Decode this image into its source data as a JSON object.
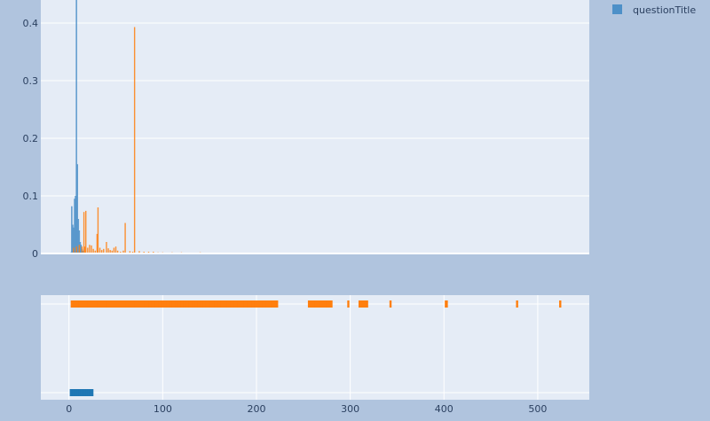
{
  "colors": {
    "page_background": "#b0c4de",
    "plot_background": "#e5ecf6",
    "grid": "#ffffff",
    "tick_text": "#2a3f5f"
  },
  "legend": {
    "placement": "top-right",
    "entries": [
      {
        "name": "questionTitle",
        "color": "#4d90c8"
      }
    ]
  },
  "chart_data": [
    {
      "type": "bar",
      "title": "",
      "xlabel": "",
      "ylabel": "",
      "xlim": [
        -30,
        555
      ],
      "ylim": [
        0,
        0.44
      ],
      "yticks": [
        0,
        0.1,
        0.2,
        0.3,
        0.4
      ],
      "grid": true,
      "series": [
        {
          "name": "questionTitle",
          "color": "#4d90c8",
          "x": [
            2,
            3,
            4,
            5,
            6,
            7,
            8,
            9,
            10,
            11,
            12,
            13,
            14,
            15
          ],
          "values": [
            0.002,
            0.082,
            0.05,
            0.045,
            0.095,
            0.1,
            0.47,
            0.155,
            0.06,
            0.04,
            0.02,
            0.015,
            0.008,
            0.005
          ]
        },
        {
          "name": "",
          "color": "#ff7f0e",
          "x": [
            5,
            8,
            11,
            14,
            16,
            17,
            18,
            20,
            22,
            24,
            26,
            28,
            30,
            31,
            33,
            35,
            37,
            40,
            42,
            44,
            46,
            48,
            50,
            52,
            55,
            58,
            60,
            65,
            68,
            70,
            75,
            80,
            85,
            90,
            95,
            100,
            110,
            120,
            130,
            140,
            150,
            160,
            170,
            180,
            190,
            200,
            210,
            220,
            225,
            256,
            265,
            275,
            285,
            298,
            310,
            343,
            402,
            478
          ],
          "values": [
            0.01,
            0.012,
            0.015,
            0.012,
            0.072,
            0.012,
            0.074,
            0.01,
            0.015,
            0.014,
            0.008,
            0.005,
            0.034,
            0.08,
            0.01,
            0.006,
            0.008,
            0.02,
            0.009,
            0.006,
            0.005,
            0.01,
            0.012,
            0.005,
            0.003,
            0.005,
            0.053,
            0.004,
            0.003,
            0.393,
            0.004,
            0.003,
            0.003,
            0.003,
            0.002,
            0.002,
            0.002,
            0.002,
            0.001,
            0.002,
            0.001,
            0.001,
            0.001,
            0.001,
            0.001,
            0.001,
            0.001,
            0.001,
            0.001,
            0.001,
            0.001,
            0.001,
            0.001,
            0.001,
            0.001,
            0.001,
            0.001,
            0.001
          ]
        }
      ]
    },
    {
      "type": "scatter",
      "title": "",
      "xlabel": "",
      "ylabel": "",
      "xlim": [
        -30,
        555
      ],
      "xticks": [
        0,
        100,
        200,
        300,
        400,
        500
      ],
      "rug": true,
      "series": [
        {
          "name": "",
          "color": "#ff7f0e",
          "level": "upper",
          "x": [
            3,
            10,
            20,
            30,
            40,
            50,
            60,
            70,
            80,
            85,
            88,
            92,
            95,
            98,
            101,
            104,
            107,
            110,
            113,
            116,
            119,
            122,
            125,
            128,
            131,
            134,
            137,
            140,
            143,
            146,
            150,
            155,
            159,
            162,
            165,
            168,
            172,
            176,
            180,
            186,
            190,
            195,
            198,
            206,
            210,
            216,
            222,
            256,
            262,
            268,
            274,
            280,
            298,
            310,
            318,
            343,
            402,
            403,
            478,
            524
          ]
        },
        {
          "name": "",
          "color": "#1f77b4",
          "level": "lower",
          "x": [
            2,
            4,
            6,
            8,
            10,
            12,
            14,
            16,
            18,
            20,
            22,
            25
          ]
        }
      ]
    }
  ]
}
